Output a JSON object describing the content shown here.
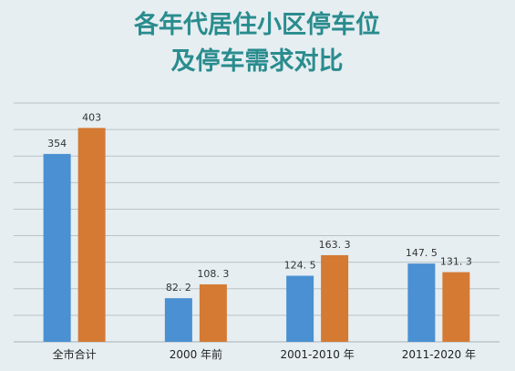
{
  "chart_data": {
    "type": "bar",
    "title": [
      "各年代居住小区停车位",
      "及停车需求对比"
    ],
    "categories": [
      "全市合计",
      "2000 年前",
      "2001-2010 年",
      "2011-2020 年"
    ],
    "series": [
      {
        "values": [
          354,
          82.2,
          124.5,
          147.5
        ],
        "color": "#4a90d2"
      },
      {
        "values": [
          403,
          108.3,
          163.3,
          131.3
        ],
        "color": "#d57a33"
      }
    ],
    "value_labels": [
      [
        "354",
        "82. 2",
        "124. 5",
        "147. 5"
      ],
      [
        "403",
        "108. 3",
        "163. 3",
        "131. 3"
      ]
    ],
    "ylim": [
      0,
      450
    ],
    "grid": true,
    "legend": "none"
  }
}
